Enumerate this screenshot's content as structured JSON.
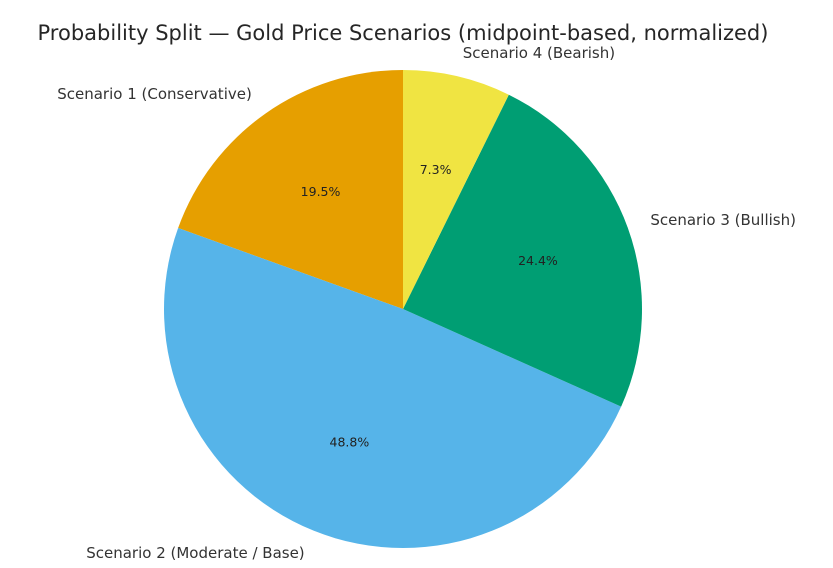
{
  "chart_data": {
    "type": "pie",
    "title": "Probability Split — Gold Price Scenarios (midpoint-based, normalized)",
    "start_angle_deg": 90,
    "direction": "counterclockwise",
    "slices": [
      {
        "label": "Scenario 1 (Conservative)",
        "value": 19.5,
        "pct_label": "19.5%",
        "color": "#E69F00"
      },
      {
        "label": "Scenario 2 (Moderate / Base)",
        "value": 48.8,
        "pct_label": "48.8%",
        "color": "#56B4E9"
      },
      {
        "label": "Scenario 3 (Bullish)",
        "value": 24.4,
        "pct_label": "24.4%",
        "color": "#009E73"
      },
      {
        "label": "Scenario 4 (Bearish)",
        "value": 7.3,
        "pct_label": "7.3%",
        "color": "#F0E442"
      }
    ]
  }
}
